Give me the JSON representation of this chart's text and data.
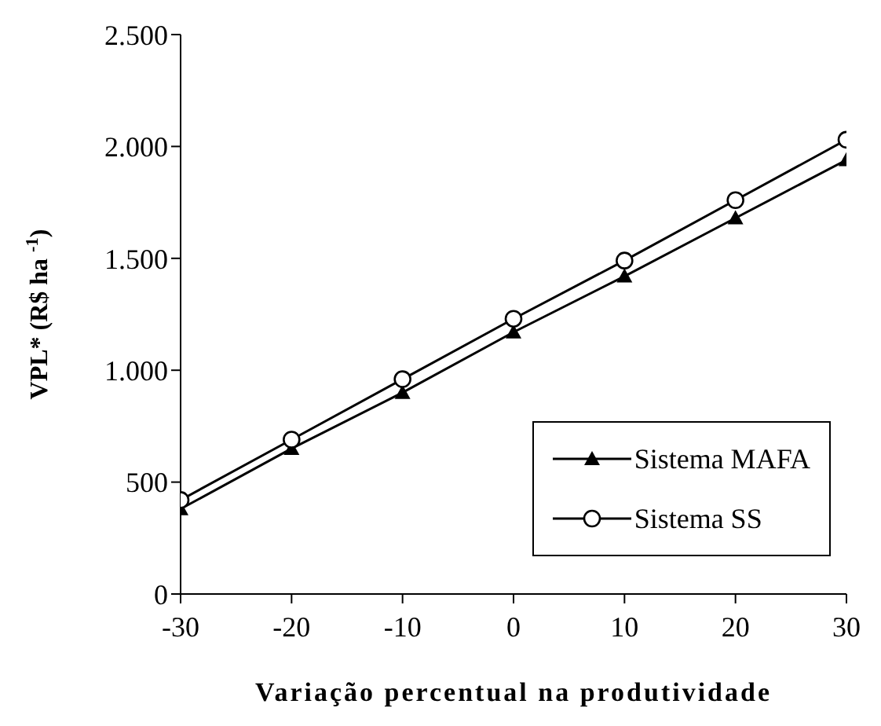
{
  "chart_data": {
    "type": "line",
    "xlabel": "Variação percentual na produtividade",
    "ylabel": "VPL* (R$ ha $^{-1}$)",
    "x": [
      -30,
      -20,
      -10,
      0,
      10,
      20,
      30
    ],
    "series": [
      {
        "name": "Sistema MAFA",
        "color": "#000000",
        "marker": "triangle",
        "values": [
          380,
          650,
          900,
          1170,
          1420,
          1680,
          1940
        ]
      },
      {
        "name": "Sistema SS",
        "color": "#000000",
        "marker": "circle",
        "values": [
          420,
          690,
          960,
          1230,
          1490,
          1760,
          2030
        ]
      }
    ],
    "xlim": [
      -30,
      30
    ],
    "xticks": [
      -30,
      -20,
      -10,
      0,
      10,
      20,
      30
    ],
    "ylim": [
      0,
      2500
    ],
    "yticks": [
      0,
      {
        "value": 500,
        "label": "500"
      },
      {
        "value": 1000,
        "label": "1.000"
      },
      {
        "value": 1500,
        "label": "1.500"
      },
      {
        "value": 2000,
        "label": "2.000"
      },
      {
        "value": 2500,
        "label": "2.500"
      }
    ],
    "legend": "bottom right",
    "grid": false,
    "line_style": "solid"
  }
}
